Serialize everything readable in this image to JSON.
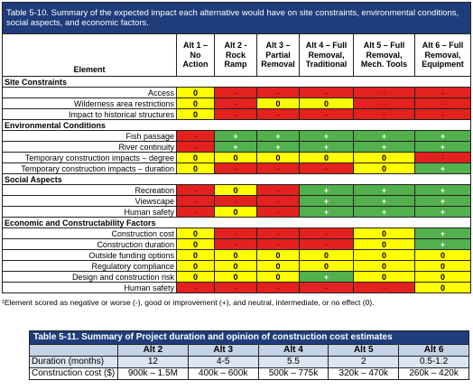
{
  "table_5_10": {
    "title": "Table 5-10. Summary of the expected impact each alternative would have on site constraints, environmental conditions, social aspects, and economic factors.",
    "headers": [
      "Element",
      "Alt 1 – No Action",
      "Alt 2 - Rock Ramp",
      "Alt 3 – Partial Removal",
      "Alt 4 – Full Removal, Traditional",
      "Alt 5 – Full Removal, Mech. Tools",
      "Alt 6 – Full Removal, Equipment"
    ],
    "sections": [
      {
        "title": "Site Constraints",
        "rows": [
          {
            "label": "Access",
            "scores": [
              "0",
              "-",
              "-",
              "-",
              "-",
              "-"
            ]
          },
          {
            "label": "Wilderness area restrictions",
            "scores": [
              "0",
              "-",
              "0",
              "0",
              "-",
              "-"
            ]
          },
          {
            "label": "Impact to historical structures",
            "scores": [
              "0",
              "-",
              "-",
              "-",
              "-",
              "-"
            ]
          }
        ]
      },
      {
        "title": "Environmental Conditions",
        "rows": [
          {
            "label": "Fish passage",
            "scores": [
              "-",
              "+",
              "+",
              "+",
              "+",
              "+"
            ]
          },
          {
            "label": "River continuity",
            "scores": [
              "-",
              "+",
              "+",
              "+",
              "+",
              "+"
            ]
          },
          {
            "label": "Temporary construction impacts – degree",
            "scores": [
              "0",
              "0",
              "0",
              "0",
              "0",
              "-"
            ]
          },
          {
            "label": "Temporary construction impacts – duration",
            "scores": [
              "0",
              "-",
              "-",
              "-",
              "0",
              "+"
            ]
          }
        ]
      },
      {
        "title": "Social Aspects",
        "rows": [
          {
            "label": "Recreation",
            "scores": [
              "-",
              "0",
              "-",
              "+",
              "+",
              "+"
            ]
          },
          {
            "label": "Viewscape",
            "scores": [
              "-",
              "-",
              "-",
              "+",
              "+",
              "+"
            ]
          },
          {
            "label": "Human safety",
            "scores": [
              "-",
              "0",
              "-",
              "+",
              "+",
              "+"
            ]
          }
        ]
      },
      {
        "title": "Economic and Constructability Factors",
        "rows": [
          {
            "label": "Construction cost",
            "scores": [
              "0",
              "-",
              "-",
              "-",
              "0",
              "+"
            ]
          },
          {
            "label": "Construction duration",
            "scores": [
              "0",
              "-",
              "-",
              "-",
              "0",
              "+"
            ]
          },
          {
            "label": "Outside funding options",
            "scores": [
              "0",
              "0",
              "0",
              "0",
              "0",
              "0"
            ]
          },
          {
            "label": "Regulatory compliance",
            "scores": [
              "0",
              "0",
              "0",
              "0",
              "0",
              "0"
            ]
          },
          {
            "label": "Design and construction risk",
            "scores": [
              "0",
              "0",
              "0",
              "+",
              "0",
              "0"
            ]
          },
          {
            "label": "Human safety",
            "scores": [
              "-",
              "-",
              "-",
              "-",
              "-",
              "0"
            ]
          }
        ]
      }
    ],
    "footnote": "¹Element scored as negative or worse (-), good or improvement (+), and neutral, intermediate, or no effect (0)."
  },
  "table_5_11": {
    "title": "Table 5-11. Summary of Project duration and opinion of construction cost estimates",
    "headers": [
      "Alt 2",
      "Alt 3",
      "Alt 4",
      "Alt 5",
      "Alt 6"
    ],
    "rows": [
      {
        "label": "Duration (months)",
        "values": [
          "12",
          "4-5",
          "5.5",
          "2",
          "0.5-1.2"
        ]
      },
      {
        "label": "Construction cost ($)",
        "values": [
          "900k – 1.5M",
          "400k – 600k",
          "500k – 775k",
          "320k – 470k",
          "260k – 420k"
        ]
      }
    ]
  }
}
